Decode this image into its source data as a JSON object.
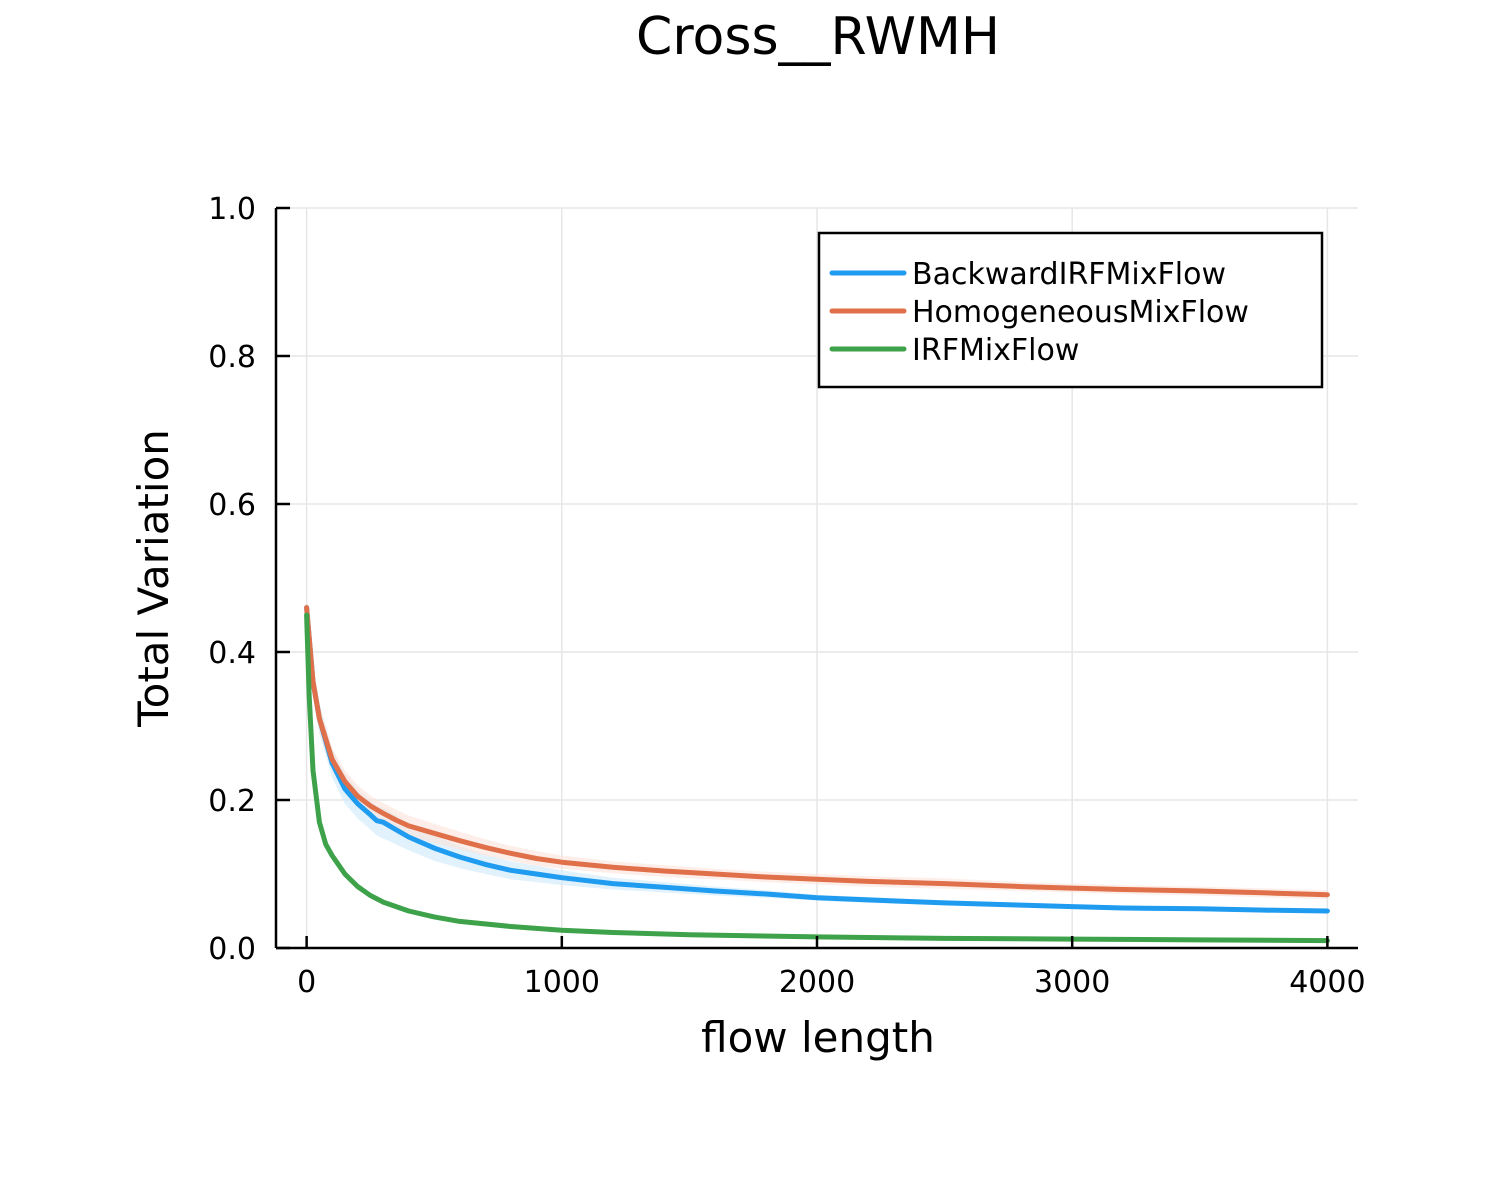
{
  "chart_data": {
    "type": "line",
    "title": "Cross__RWMH",
    "xlabel": "flow length",
    "ylabel": "Total Variation",
    "xlim": [
      -120,
      4120
    ],
    "ylim": [
      0,
      1
    ],
    "x_ticks": [
      0,
      1000,
      2000,
      3000,
      4000
    ],
    "x_tick_labels": [
      "0",
      "1000",
      "2000",
      "3000",
      "4000"
    ],
    "y_ticks": [
      0,
      0.2,
      0.4,
      0.6,
      0.8,
      1.0
    ],
    "y_tick_labels": [
      "0.0",
      "0.2",
      "0.4",
      "0.6",
      "0.8",
      "1.0"
    ],
    "grid": true,
    "legend_position": "top-right",
    "series": [
      {
        "name": "BackwardIRFMixFlow",
        "color": "#1f9bf0",
        "band_color": "#cde9fb",
        "x": [
          0,
          25,
          50,
          100,
          150,
          200,
          250,
          275,
          300,
          350,
          400,
          500,
          600,
          700,
          800,
          900,
          1000,
          1200,
          1400,
          1600,
          1800,
          2000,
          2200,
          2500,
          2800,
          3000,
          3200,
          3500,
          3800,
          4000
        ],
        "values": [
          0.46,
          0.36,
          0.31,
          0.25,
          0.215,
          0.195,
          0.18,
          0.172,
          0.17,
          0.16,
          0.15,
          0.135,
          0.123,
          0.113,
          0.105,
          0.1,
          0.095,
          0.087,
          0.082,
          0.077,
          0.073,
          0.068,
          0.065,
          0.061,
          0.058,
          0.056,
          0.054,
          0.053,
          0.051,
          0.05
        ],
        "lower": [
          0.44,
          0.34,
          0.29,
          0.23,
          0.195,
          0.175,
          0.16,
          0.152,
          0.148,
          0.14,
          0.132,
          0.118,
          0.108,
          0.1,
          0.093,
          0.089,
          0.085,
          0.079,
          0.075,
          0.071,
          0.068,
          0.064,
          0.061,
          0.058,
          0.055,
          0.053,
          0.051,
          0.05,
          0.049,
          0.048
        ],
        "upper": [
          0.48,
          0.38,
          0.33,
          0.27,
          0.235,
          0.215,
          0.2,
          0.192,
          0.19,
          0.18,
          0.168,
          0.152,
          0.138,
          0.126,
          0.117,
          0.111,
          0.105,
          0.095,
          0.089,
          0.083,
          0.078,
          0.072,
          0.069,
          0.064,
          0.061,
          0.059,
          0.057,
          0.056,
          0.053,
          0.052
        ]
      },
      {
        "name": "HomogeneousMixFlow",
        "color": "#e0704a",
        "band_color": "#fbe3da",
        "x": [
          0,
          25,
          50,
          100,
          150,
          200,
          250,
          300,
          350,
          400,
          500,
          600,
          700,
          800,
          900,
          1000,
          1200,
          1400,
          1600,
          1800,
          2000,
          2200,
          2500,
          2800,
          3000,
          3200,
          3500,
          3800,
          4000
        ],
        "values": [
          0.46,
          0.36,
          0.31,
          0.255,
          0.225,
          0.205,
          0.192,
          0.182,
          0.173,
          0.165,
          0.155,
          0.145,
          0.136,
          0.128,
          0.121,
          0.116,
          0.109,
          0.104,
          0.1,
          0.096,
          0.093,
          0.09,
          0.087,
          0.083,
          0.081,
          0.079,
          0.077,
          0.074,
          0.072
        ],
        "lower": [
          0.44,
          0.34,
          0.29,
          0.24,
          0.21,
          0.19,
          0.178,
          0.168,
          0.159,
          0.151,
          0.142,
          0.133,
          0.125,
          0.118,
          0.111,
          0.107,
          0.101,
          0.096,
          0.093,
          0.089,
          0.086,
          0.083,
          0.08,
          0.077,
          0.075,
          0.073,
          0.071,
          0.068,
          0.066
        ],
        "upper": [
          0.48,
          0.38,
          0.33,
          0.27,
          0.24,
          0.22,
          0.206,
          0.196,
          0.187,
          0.179,
          0.168,
          0.157,
          0.147,
          0.138,
          0.131,
          0.125,
          0.117,
          0.112,
          0.107,
          0.103,
          0.1,
          0.097,
          0.094,
          0.089,
          0.087,
          0.085,
          0.083,
          0.08,
          0.078
        ]
      },
      {
        "name": "IRFMixFlow",
        "color": "#3da24a",
        "band_color": "#d8ecd9",
        "x": [
          0,
          10,
          25,
          50,
          75,
          100,
          150,
          200,
          250,
          300,
          400,
          500,
          600,
          800,
          1000,
          1200,
          1500,
          2000,
          2500,
          3000,
          3500,
          4000
        ],
        "values": [
          0.45,
          0.34,
          0.24,
          0.17,
          0.14,
          0.125,
          0.1,
          0.083,
          0.071,
          0.062,
          0.05,
          0.042,
          0.036,
          0.029,
          0.024,
          0.021,
          0.018,
          0.015,
          0.013,
          0.012,
          0.011,
          0.01
        ],
        "lower": [
          0.44,
          0.33,
          0.23,
          0.162,
          0.133,
          0.119,
          0.095,
          0.079,
          0.068,
          0.059,
          0.048,
          0.04,
          0.034,
          0.028,
          0.023,
          0.02,
          0.017,
          0.014,
          0.012,
          0.011,
          0.01,
          0.009
        ],
        "upper": [
          0.46,
          0.35,
          0.25,
          0.178,
          0.147,
          0.131,
          0.105,
          0.087,
          0.074,
          0.065,
          0.052,
          0.044,
          0.038,
          0.031,
          0.025,
          0.022,
          0.019,
          0.016,
          0.014,
          0.013,
          0.012,
          0.011
        ]
      }
    ]
  }
}
